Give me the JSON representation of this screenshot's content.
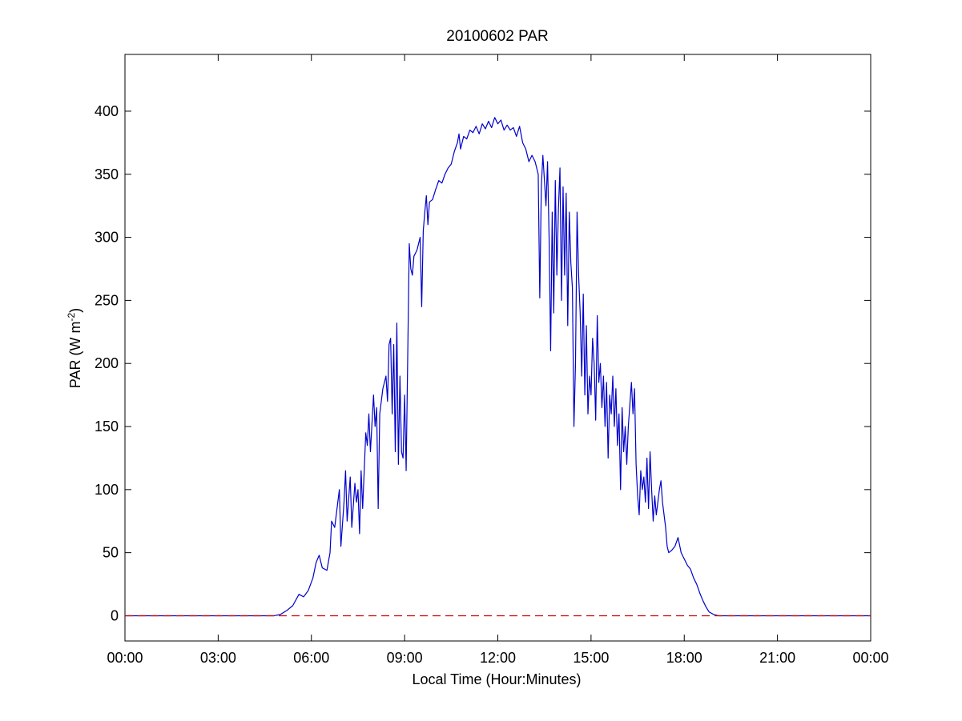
{
  "chart_data": {
    "type": "line",
    "title": "20100602 PAR",
    "xlabel": "Local Time (Hour:Minutes)",
    "ylabel_main": "PAR (W m",
    "ylabel_sup": "-2",
    "ylabel_end": ")",
    "xlim": [
      0,
      24
    ],
    "ylim": [
      -20,
      445
    ],
    "x_ticks": [
      0,
      3,
      6,
      9,
      12,
      15,
      18,
      21,
      24
    ],
    "x_tick_labels": [
      "00:00",
      "03:00",
      "06:00",
      "09:00",
      "12:00",
      "15:00",
      "18:00",
      "21:00",
      "00:00"
    ],
    "y_ticks": [
      0,
      50,
      100,
      150,
      200,
      250,
      300,
      350,
      400
    ],
    "y_tick_labels": [
      "0",
      "50",
      "100",
      "150",
      "200",
      "250",
      "300",
      "350",
      "400"
    ],
    "grid": false,
    "series": [
      {
        "color": "#0000cc",
        "style": "solid",
        "points": [
          [
            0,
            0
          ],
          [
            4.8,
            0
          ],
          [
            5.0,
            1
          ],
          [
            5.2,
            4
          ],
          [
            5.4,
            8
          ],
          [
            5.6,
            17
          ],
          [
            5.75,
            15
          ],
          [
            5.9,
            20
          ],
          [
            6.05,
            30
          ],
          [
            6.15,
            42
          ],
          [
            6.25,
            48
          ],
          [
            6.35,
            38
          ],
          [
            6.5,
            36
          ],
          [
            6.6,
            50
          ],
          [
            6.65,
            75
          ],
          [
            6.75,
            70
          ],
          [
            6.8,
            80
          ],
          [
            6.9,
            100
          ],
          [
            6.95,
            55
          ],
          [
            7.05,
            90
          ],
          [
            7.1,
            115
          ],
          [
            7.15,
            75
          ],
          [
            7.25,
            110
          ],
          [
            7.3,
            70
          ],
          [
            7.4,
            105
          ],
          [
            7.45,
            90
          ],
          [
            7.5,
            100
          ],
          [
            7.55,
            65
          ],
          [
            7.6,
            115
          ],
          [
            7.65,
            85
          ],
          [
            7.75,
            145
          ],
          [
            7.8,
            135
          ],
          [
            7.85,
            160
          ],
          [
            7.9,
            130
          ],
          [
            8.0,
            175
          ],
          [
            8.05,
            150
          ],
          [
            8.1,
            165
          ],
          [
            8.15,
            85
          ],
          [
            8.2,
            160
          ],
          [
            8.3,
            180
          ],
          [
            8.4,
            190
          ],
          [
            8.45,
            170
          ],
          [
            8.5,
            215
          ],
          [
            8.55,
            220
          ],
          [
            8.6,
            160
          ],
          [
            8.65,
            215
          ],
          [
            8.7,
            130
          ],
          [
            8.75,
            232
          ],
          [
            8.8,
            120
          ],
          [
            8.85,
            190
          ],
          [
            8.9,
            130
          ],
          [
            8.95,
            125
          ],
          [
            9.0,
            175
          ],
          [
            9.05,
            115
          ],
          [
            9.15,
            295
          ],
          [
            9.2,
            275
          ],
          [
            9.25,
            270
          ],
          [
            9.3,
            285
          ],
          [
            9.4,
            290
          ],
          [
            9.5,
            300
          ],
          [
            9.55,
            245
          ],
          [
            9.6,
            305
          ],
          [
            9.65,
            320
          ],
          [
            9.7,
            333
          ],
          [
            9.75,
            310
          ],
          [
            9.8,
            328
          ],
          [
            9.9,
            330
          ],
          [
            10.0,
            338
          ],
          [
            10.1,
            345
          ],
          [
            10.2,
            343
          ],
          [
            10.3,
            350
          ],
          [
            10.4,
            355
          ],
          [
            10.5,
            358
          ],
          [
            10.6,
            368
          ],
          [
            10.7,
            375
          ],
          [
            10.75,
            382
          ],
          [
            10.8,
            370
          ],
          [
            10.9,
            380
          ],
          [
            11.0,
            378
          ],
          [
            11.1,
            385
          ],
          [
            11.2,
            383
          ],
          [
            11.3,
            388
          ],
          [
            11.4,
            382
          ],
          [
            11.5,
            390
          ],
          [
            11.6,
            386
          ],
          [
            11.7,
            392
          ],
          [
            11.8,
            387
          ],
          [
            11.9,
            395
          ],
          [
            12.0,
            390
          ],
          [
            12.1,
            393
          ],
          [
            12.2,
            385
          ],
          [
            12.3,
            389
          ],
          [
            12.4,
            385
          ],
          [
            12.5,
            387
          ],
          [
            12.6,
            380
          ],
          [
            12.7,
            388
          ],
          [
            12.8,
            375
          ],
          [
            12.9,
            370
          ],
          [
            13.0,
            360
          ],
          [
            13.1,
            365
          ],
          [
            13.2,
            360
          ],
          [
            13.3,
            350
          ],
          [
            13.35,
            252
          ],
          [
            13.4,
            340
          ],
          [
            13.45,
            365
          ],
          [
            13.5,
            345
          ],
          [
            13.55,
            325
          ],
          [
            13.6,
            360
          ],
          [
            13.65,
            300
          ],
          [
            13.7,
            210
          ],
          [
            13.75,
            320
          ],
          [
            13.8,
            240
          ],
          [
            13.85,
            345
          ],
          [
            13.9,
            270
          ],
          [
            13.95,
            322
          ],
          [
            14.0,
            355
          ],
          [
            14.05,
            250
          ],
          [
            14.1,
            340
          ],
          [
            14.15,
            270
          ],
          [
            14.2,
            335
          ],
          [
            14.25,
            230
          ],
          [
            14.3,
            320
          ],
          [
            14.35,
            280
          ],
          [
            14.4,
            260
          ],
          [
            14.45,
            150
          ],
          [
            14.5,
            200
          ],
          [
            14.55,
            320
          ],
          [
            14.6,
            270
          ],
          [
            14.65,
            240
          ],
          [
            14.7,
            190
          ],
          [
            14.75,
            255
          ],
          [
            14.8,
            175
          ],
          [
            14.85,
            230
          ],
          [
            14.9,
            160
          ],
          [
            14.95,
            190
          ],
          [
            15.0,
            175
          ],
          [
            15.05,
            220
          ],
          [
            15.1,
            200
          ],
          [
            15.15,
            155
          ],
          [
            15.2,
            238
          ],
          [
            15.25,
            185
          ],
          [
            15.3,
            200
          ],
          [
            15.35,
            165
          ],
          [
            15.4,
            190
          ],
          [
            15.45,
            150
          ],
          [
            15.5,
            185
          ],
          [
            15.55,
            125
          ],
          [
            15.6,
            175
          ],
          [
            15.65,
            160
          ],
          [
            15.7,
            190
          ],
          [
            15.75,
            150
          ],
          [
            15.8,
            180
          ],
          [
            15.85,
            135
          ],
          [
            15.9,
            160
          ],
          [
            15.95,
            100
          ],
          [
            16.0,
            165
          ],
          [
            16.05,
            130
          ],
          [
            16.1,
            150
          ],
          [
            16.15,
            120
          ],
          [
            16.2,
            150
          ],
          [
            16.3,
            185
          ],
          [
            16.35,
            160
          ],
          [
            16.4,
            180
          ],
          [
            16.45,
            120
          ],
          [
            16.5,
            95
          ],
          [
            16.55,
            80
          ],
          [
            16.6,
            115
          ],
          [
            16.65,
            100
          ],
          [
            16.7,
            110
          ],
          [
            16.75,
            90
          ],
          [
            16.8,
            125
          ],
          [
            16.85,
            85
          ],
          [
            16.9,
            130
          ],
          [
            16.95,
            100
          ],
          [
            17.0,
            75
          ],
          [
            17.05,
            95
          ],
          [
            17.1,
            80
          ],
          [
            17.2,
            100
          ],
          [
            17.25,
            107
          ],
          [
            17.3,
            90
          ],
          [
            17.4,
            70
          ],
          [
            17.45,
            55
          ],
          [
            17.5,
            50
          ],
          [
            17.6,
            52
          ],
          [
            17.7,
            55
          ],
          [
            17.8,
            62
          ],
          [
            17.9,
            50
          ],
          [
            18.0,
            45
          ],
          [
            18.1,
            40
          ],
          [
            18.2,
            37
          ],
          [
            18.3,
            30
          ],
          [
            18.4,
            25
          ],
          [
            18.5,
            18
          ],
          [
            18.6,
            12
          ],
          [
            18.7,
            7
          ],
          [
            18.8,
            3
          ],
          [
            18.95,
            1
          ],
          [
            19.1,
            0
          ],
          [
            24,
            0
          ]
        ]
      },
      {
        "color": "#cc0000",
        "style": "dashed",
        "points": [
          [
            0,
            0
          ],
          [
            24,
            0
          ]
        ]
      }
    ]
  }
}
